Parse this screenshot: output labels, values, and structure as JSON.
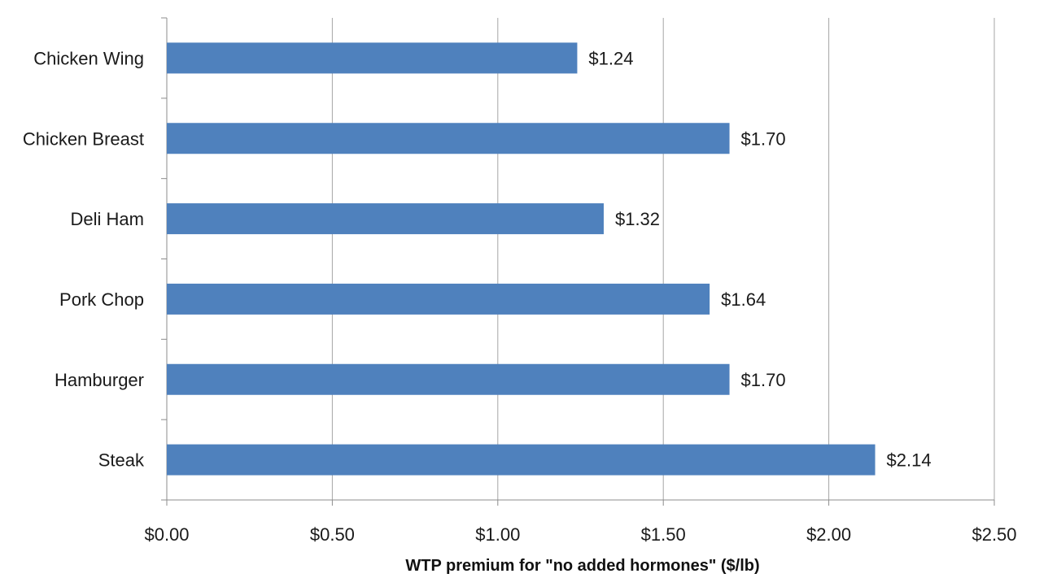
{
  "chart_data": {
    "type": "bar",
    "orientation": "horizontal",
    "categories": [
      "Chicken Wing",
      "Chicken Breast",
      "Deli Ham",
      "Pork Chop",
      "Hamburger",
      "Steak"
    ],
    "values": [
      1.24,
      1.7,
      1.32,
      1.64,
      1.7,
      2.14
    ],
    "data_labels": [
      "$1.24",
      "$1.70",
      "$1.32",
      "$1.64",
      "$1.70",
      "$2.14"
    ],
    "xlabel": "WTP premium for \"no added hormones\" ($/lb)",
    "ylabel": "",
    "title": "",
    "xlim": [
      0,
      2.5
    ],
    "x_ticks": [
      0,
      0.5,
      1.0,
      1.5,
      2.0,
      2.5
    ],
    "x_tick_labels": [
      "$0.00",
      "$0.50",
      "$1.00",
      "$1.50",
      "$2.00",
      "$2.50"
    ],
    "grid": "vertical",
    "legend": "none",
    "colors": {
      "bar": "#4f81bd",
      "grid": "#a6a6a6",
      "axis": "#8c8c8c"
    }
  }
}
